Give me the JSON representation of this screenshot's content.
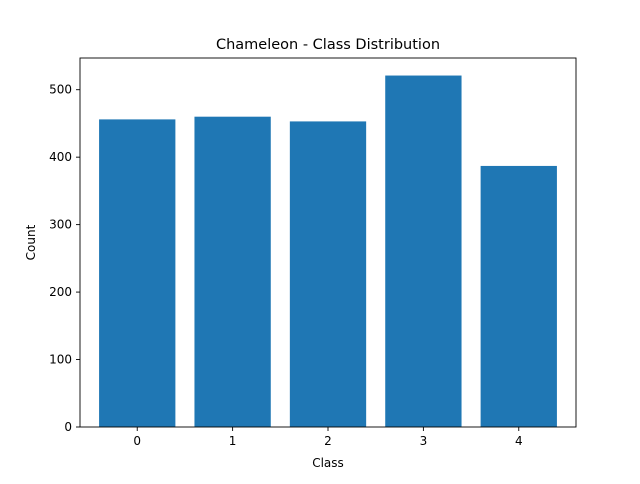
{
  "chart_data": {
    "type": "bar",
    "title": "Chameleon - Class Distribution",
    "xlabel": "Class",
    "ylabel": "Count",
    "categories": [
      "0",
      "1",
      "2",
      "3",
      "4"
    ],
    "values": [
      456,
      460,
      453,
      521,
      387
    ],
    "ylim": [
      0,
      547
    ],
    "yticks": [
      0,
      100,
      200,
      300,
      400,
      500
    ],
    "grid": false,
    "bar_color": "#1f77b4"
  }
}
